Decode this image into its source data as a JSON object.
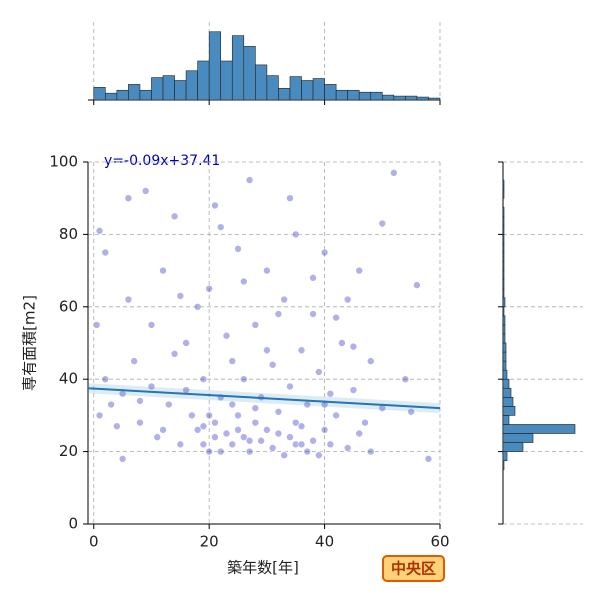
{
  "chart_data": {
    "type": "scatter",
    "x_label": "築年数[年]",
    "y_label": "専有面積[m2]",
    "annotation": "y=-0.09x+37.41",
    "badge": "中央区",
    "regression": {
      "slope": -0.09,
      "intercept": 37.41,
      "color": "#1f77b4"
    },
    "xlim": [
      -1,
      60
    ],
    "ylim": [
      0,
      100
    ],
    "xticks": [
      0,
      20,
      40,
      60
    ],
    "yticks": [
      0,
      20,
      40,
      60,
      80,
      100
    ],
    "grid": true,
    "color": "#2020c0",
    "x": [
      1,
      0.5,
      1,
      2,
      3,
      4,
      5,
      5,
      6,
      7,
      8,
      9,
      10,
      11,
      12,
      13,
      14,
      15,
      16,
      17,
      18,
      19,
      19,
      20,
      20,
      21,
      21,
      22,
      22,
      23,
      23,
      24,
      24,
      25,
      25,
      26,
      26,
      27,
      27,
      28,
      28,
      29,
      29,
      30,
      30,
      31,
      31,
      32,
      32,
      33,
      33,
      34,
      34,
      35,
      35,
      36,
      36,
      37,
      37,
      38,
      38,
      39,
      39,
      40,
      40,
      41,
      41,
      42,
      43,
      44,
      45,
      46,
      47,
      48,
      50,
      52,
      54,
      56,
      58,
      2,
      6,
      10,
      14,
      18,
      22,
      26,
      30,
      34,
      38,
      42,
      46,
      50,
      12,
      16,
      20,
      24,
      28,
      32,
      36,
      40,
      44,
      48,
      8,
      15,
      25,
      35,
      45,
      55,
      19,
      21,
      27
    ],
    "y": [
      81,
      55,
      30,
      40,
      33,
      27,
      18,
      36,
      62,
      45,
      28,
      92,
      38,
      24,
      70,
      33,
      85,
      22,
      50,
      30,
      26,
      40,
      22,
      65,
      30,
      24,
      88,
      35,
      20,
      25,
      52,
      22,
      33,
      26,
      76,
      24,
      40,
      20,
      95,
      28,
      55,
      23,
      35,
      26,
      70,
      21,
      44,
      25,
      31,
      19,
      62,
      24,
      38,
      22,
      80,
      27,
      48,
      20,
      33,
      23,
      58,
      19,
      42,
      26,
      75,
      22,
      36,
      30,
      50,
      21,
      37,
      70,
      28,
      45,
      32,
      97,
      40,
      66,
      18,
      75,
      90,
      55,
      47,
      60,
      82,
      67,
      48,
      90,
      68,
      57,
      25,
      83,
      26,
      37,
      20,
      45,
      32,
      58,
      22,
      33,
      62,
      20,
      34,
      63,
      30,
      28,
      49,
      31,
      27,
      28,
      23
    ],
    "marginal_x": {
      "type": "histogram",
      "color": "#4a8bbf",
      "ylim": [
        0,
        80
      ],
      "bins": [
        0,
        2,
        4,
        6,
        8,
        10,
        12,
        14,
        16,
        18,
        20,
        22,
        24,
        26,
        28,
        30,
        32,
        34,
        36,
        38,
        40,
        42,
        44,
        46,
        48,
        50,
        52,
        54,
        56,
        58,
        60
      ],
      "counts": [
        13,
        7,
        10,
        16,
        10,
        23,
        25,
        20,
        30,
        40,
        70,
        40,
        66,
        55,
        36,
        25,
        12,
        24,
        20,
        22,
        16,
        10,
        10,
        8,
        8,
        5,
        4,
        4,
        3,
        2
      ]
    },
    "marginal_y": {
      "type": "histogram",
      "color": "#4a8bbf",
      "xlim": [
        0,
        80
      ],
      "bins": [
        0,
        2.5,
        5,
        7.5,
        10,
        12.5,
        15,
        17.5,
        20,
        22.5,
        25,
        27.5,
        30,
        32.5,
        35,
        37.5,
        40,
        42.5,
        45,
        47.5,
        50,
        52.5,
        55,
        57.5,
        60,
        62.5,
        65,
        67.5,
        70,
        72.5,
        75,
        77.5,
        80,
        82.5,
        85,
        87.5,
        90,
        92.5,
        95,
        97.5,
        100
      ],
      "counts": [
        0,
        0,
        0,
        0,
        0,
        0,
        1,
        4,
        20,
        30,
        72,
        6,
        12,
        10,
        8,
        6,
        4,
        3,
        3,
        3,
        2,
        2,
        2,
        1,
        2,
        1,
        1,
        1,
        1,
        1,
        1,
        1,
        1,
        1,
        1,
        0,
        1,
        1,
        0,
        0
      ]
    }
  }
}
